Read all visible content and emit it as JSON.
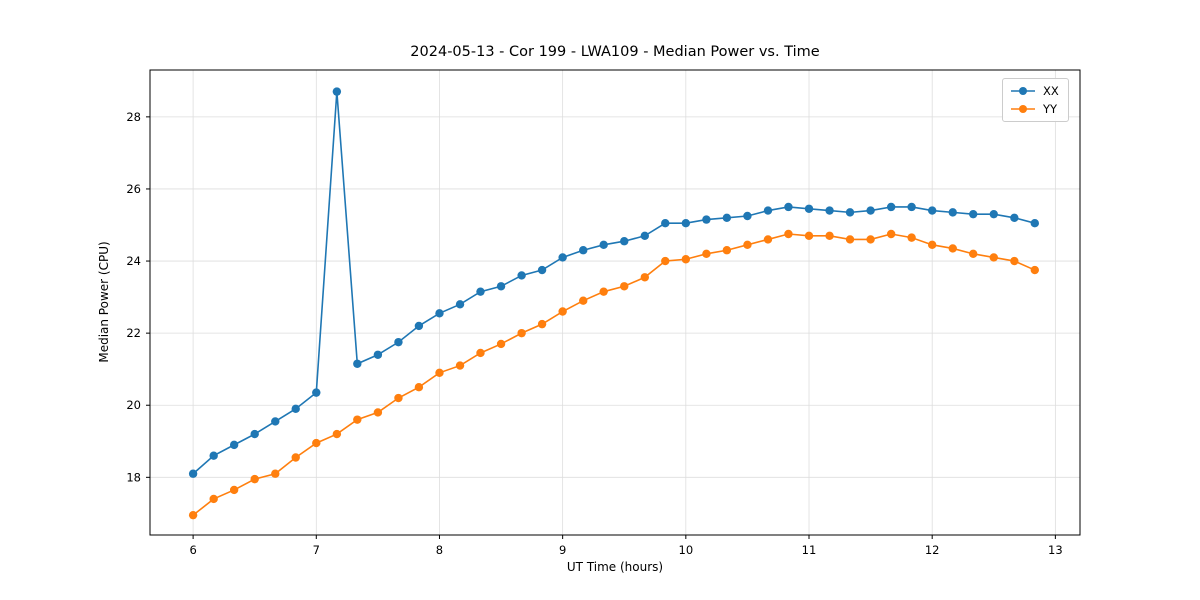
{
  "figure": {
    "title": "2024-05-13 - Cor 199 - LWA109 - Median Power vs. Time"
  },
  "chart_data": {
    "type": "line",
    "title": "2024-05-13 - Cor 199 - LWA109 - Median Power vs. Time",
    "xlabel": "UT Time (hours)",
    "ylabel": "Median Power (CPU)",
    "xlim": [
      5.65,
      13.2
    ],
    "ylim": [
      16.4,
      29.3
    ],
    "xticks": [
      6,
      7,
      8,
      9,
      10,
      11,
      12,
      13
    ],
    "yticks": [
      18,
      20,
      22,
      24,
      26,
      28
    ],
    "grid": true,
    "legend_position": "upper right",
    "x": [
      6.0,
      6.167,
      6.333,
      6.5,
      6.667,
      6.833,
      7.0,
      7.167,
      7.333,
      7.5,
      7.667,
      7.833,
      8.0,
      8.167,
      8.333,
      8.5,
      8.667,
      8.833,
      9.0,
      9.167,
      9.333,
      9.5,
      9.667,
      9.833,
      10.0,
      10.167,
      10.333,
      10.5,
      10.667,
      10.833,
      11.0,
      11.167,
      11.333,
      11.5,
      11.667,
      11.833,
      12.0,
      12.167,
      12.333,
      12.5,
      12.667,
      12.833
    ],
    "series": [
      {
        "name": "XX",
        "color": "#1f77b4",
        "values": [
          18.1,
          18.6,
          18.9,
          19.2,
          19.55,
          19.9,
          20.35,
          28.7,
          21.15,
          21.4,
          21.75,
          22.2,
          22.55,
          22.8,
          23.15,
          23.3,
          23.6,
          23.75,
          24.1,
          24.3,
          24.45,
          24.55,
          24.7,
          25.05,
          25.05,
          25.15,
          25.2,
          25.25,
          25.4,
          25.5,
          25.45,
          25.4,
          25.35,
          25.4,
          25.5,
          25.5,
          25.4,
          25.35,
          25.3,
          25.3,
          25.2,
          25.05
        ]
      },
      {
        "name": "YY",
        "color": "#ff7f0e",
        "values": [
          16.95,
          17.4,
          17.65,
          17.95,
          18.1,
          18.55,
          18.95,
          19.2,
          19.6,
          19.8,
          20.2,
          20.5,
          20.9,
          21.1,
          21.45,
          21.7,
          22.0,
          22.25,
          22.6,
          22.9,
          23.15,
          23.3,
          23.55,
          24.0,
          24.05,
          24.2,
          24.3,
          24.45,
          24.6,
          24.75,
          24.7,
          24.7,
          24.6,
          24.6,
          24.75,
          24.65,
          24.45,
          24.35,
          24.2,
          24.1,
          24.0,
          23.75
        ]
      }
    ]
  }
}
